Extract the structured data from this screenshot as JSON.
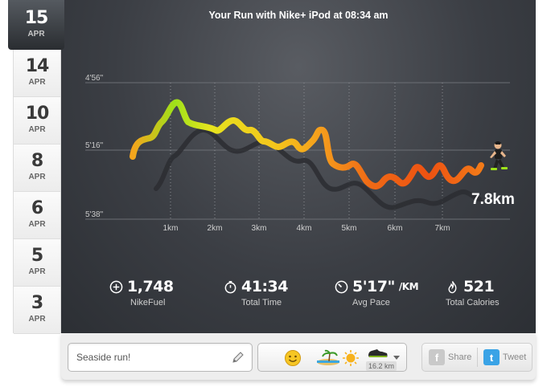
{
  "dates": [
    {
      "day": "15",
      "month": "APR",
      "active": true
    },
    {
      "day": "14",
      "month": "APR"
    },
    {
      "day": "10",
      "month": "APR"
    },
    {
      "day": "8",
      "month": "APR"
    },
    {
      "day": "6",
      "month": "APR"
    },
    {
      "day": "5",
      "month": "APR"
    },
    {
      "day": "3",
      "month": "APR"
    }
  ],
  "run": {
    "title": "Your Run with Nike+ iPod at 08:34 am",
    "total_distance": "7.8km"
  },
  "chart_data": {
    "type": "line",
    "y_ticks": [
      "4'56\"",
      "5'16\"",
      "5'38\""
    ],
    "x_ticks": [
      "1km",
      "2km",
      "3km",
      "4km",
      "5km",
      "6km",
      "7km"
    ],
    "pace_gradient_colors": [
      "#9ee21a",
      "#f2e41c",
      "#f59a1c",
      "#ee5a14"
    ]
  },
  "stats": {
    "fuel": {
      "value": "1,748",
      "label": "NikeFuel"
    },
    "time": {
      "value": "41:34",
      "label": "Total Time"
    },
    "pace": {
      "value": "5'17\"",
      "unit": "/KM",
      "label": "Avg Pace"
    },
    "calories": {
      "value": "521",
      "label": "Total Calories"
    }
  },
  "toolbar": {
    "note_value": "Seaside run!",
    "shoe_distance": "16.2 km",
    "share_label": "Share",
    "tweet_label": "Tweet"
  }
}
